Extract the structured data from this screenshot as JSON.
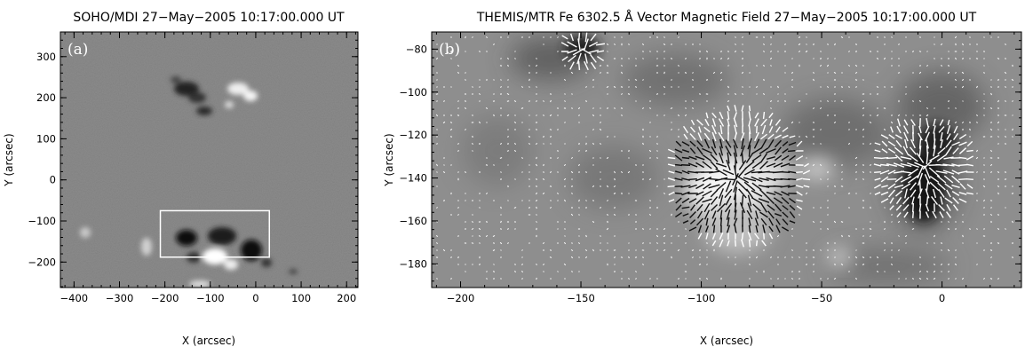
{
  "figure": {
    "panels": [
      {
        "id": "a",
        "title": "SOHO/MDI 27−May−2005 10:17:00.000 UT",
        "letter": "(a)",
        "xlabel": "X (arcsec)",
        "ylabel": "Y (arcsec)",
        "xlim": [
          -430,
          225
        ],
        "ylim": [
          -262,
          360
        ],
        "xticks": [
          -400,
          -300,
          -200,
          -100,
          0,
          100,
          200
        ],
        "yticks": [
          -200,
          -100,
          0,
          100,
          200,
          300
        ],
        "xtick_labels": [
          "−400",
          "−300",
          "−200",
          "−100",
          "0",
          "100",
          "200"
        ],
        "ytick_labels": [
          "−200",
          "−100",
          "0",
          "100",
          "200",
          "300"
        ],
        "box": {
          "x": [
            -210,
            30
          ],
          "y": [
            -188,
            -75
          ]
        },
        "colors": {
          "background": "#8c8c8c",
          "box": "#ffffff"
        }
      },
      {
        "id": "b",
        "title": "THEMIS/MTR Fe 6302.5 Å Vector Magnetic Field 27−May−2005 10:17:00.000 UT",
        "letter": "(b)",
        "xlabel": "X (arcsec)",
        "ylabel": "Y (arcsec)",
        "xlim": [
          -212,
          33
        ],
        "ylim": [
          -191,
          -72
        ],
        "xticks": [
          -200,
          -150,
          -100,
          -50,
          0
        ],
        "yticks": [
          -180,
          -160,
          -140,
          -120,
          -100,
          -80
        ],
        "xtick_labels": [
          "−200",
          "−150",
          "−100",
          "−50",
          "0"
        ],
        "ytick_labels": [
          "−180",
          "−160",
          "−140",
          "−120",
          "−100",
          "−80"
        ],
        "colors": {
          "background": "#8e8e8e"
        }
      }
    ]
  }
}
